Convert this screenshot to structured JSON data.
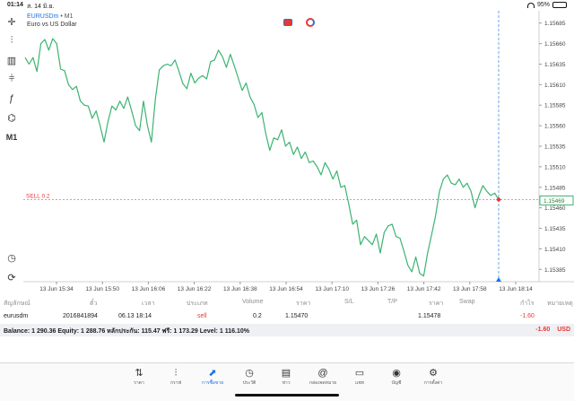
{
  "status": {
    "time": "01:14",
    "date": "ส. 14 มิ.ย.",
    "battery": "95%"
  },
  "chart": {
    "symbol": "EURUSDm",
    "timeframe": "M1",
    "description": "Euro vs US Dollar",
    "timeframe_button": "M1",
    "order_line_label": "SELL 0.2",
    "current_price": "1.15469",
    "price_ticks": [
      "1.15685",
      "1.15660",
      "1.15635",
      "1.15610",
      "1.15585",
      "1.15560",
      "1.15535",
      "1.15510",
      "1.15485",
      "1.15460",
      "1.15435",
      "1.15410",
      "1.15385"
    ],
    "time_ticks": [
      "13 Jun 15:34",
      "13 Jun 15:50",
      "13 Jun 16:06",
      "13 Jun 16:22",
      "13 Jun 16:38",
      "13 Jun 16:54",
      "13 Jun 17:10",
      "13 Jun 17:26",
      "13 Jun 17:42",
      "13 Jun 17:58",
      "13 Jun 18:14"
    ],
    "line_color": "#3cb371"
  },
  "chart_data": {
    "type": "line",
    "ylim": [
      1.1537,
      1.157
    ],
    "order_price": 1.1547,
    "current_price": 1.15469,
    "values": [
      1.15643,
      1.15635,
      1.15643,
      1.15626,
      1.1566,
      1.15665,
      1.15652,
      1.15666,
      1.1566,
      1.15629,
      1.15627,
      1.1561,
      1.15604,
      1.15608,
      1.1559,
      1.15585,
      1.15584,
      1.15569,
      1.15578,
      1.1556,
      1.1554,
      1.15565,
      1.15584,
      1.15579,
      1.1559,
      1.15581,
      1.15595,
      1.15578,
      1.1556,
      1.15554,
      1.1559,
      1.1556,
      1.1554,
      1.15592,
      1.15628,
      1.15633,
      1.15635,
      1.15633,
      1.1564,
      1.15626,
      1.15611,
      1.15605,
      1.15624,
      1.15612,
      1.15618,
      1.15621,
      1.15617,
      1.15638,
      1.1564,
      1.15652,
      1.15644,
      1.15631,
      1.15647,
      1.15633,
      1.15618,
      1.15603,
      1.15612,
      1.15595,
      1.15586,
      1.1557,
      1.15576,
      1.1555,
      1.1553,
      1.15545,
      1.15543,
      1.15555,
      1.15535,
      1.1554,
      1.15525,
      1.15534,
      1.1552,
      1.15528,
      1.15515,
      1.15517,
      1.1551,
      1.155,
      1.15515,
      1.15507,
      1.15495,
      1.15505,
      1.15485,
      1.15487,
      1.15465,
      1.1544,
      1.15445,
      1.15415,
      1.15425,
      1.1542,
      1.15415,
      1.15428,
      1.15405,
      1.1543,
      1.15438,
      1.1544,
      1.15425,
      1.15423,
      1.15407,
      1.1539,
      1.15382,
      1.154,
      1.1538,
      1.15377,
      1.15405,
      1.15427,
      1.1545,
      1.1548,
      1.15495,
      1.155,
      1.1549,
      1.15488,
      1.15495,
      1.15485,
      1.1549,
      1.1548,
      1.1546,
      1.15475,
      1.15487,
      1.1548,
      1.15475,
      1.15478,
      1.1547
    ]
  },
  "table": {
    "headers": [
      "สัญลักษณ์",
      "ตั๋ว",
      "เวลา",
      "ประเภท",
      "Volume",
      "ราคา",
      "S/L",
      "T/P",
      "ราคา",
      "Swap",
      "กำไร",
      "หมายเหตุ"
    ],
    "row": {
      "symbol": "eurusdm",
      "ticket": "2016841894",
      "time": "06.13 18:14",
      "type": "sell",
      "volume": "0.2",
      "open_price": "1.15470",
      "current_price": "1.15478",
      "profit": "-1.60"
    },
    "balance": "Balance: 1 290.36 Equity: 1 288.76 หลักประกัน: 115.47 ฟรี: 1 173.29 Level: 1 116.10%",
    "total_profit": "-1.60",
    "currency": "USD"
  },
  "tabs": [
    {
      "label": "ราคา",
      "icon": "arrows-updown-icon"
    },
    {
      "label": "กราฟ",
      "icon": "candles-icon"
    },
    {
      "label": "การซื้อขาย",
      "icon": "trade-chart-icon"
    },
    {
      "label": "ประวัติ",
      "icon": "history-icon"
    },
    {
      "label": "ข่าว",
      "icon": "news-icon"
    },
    {
      "label": "กล่องจดหมาย",
      "icon": "mail-icon"
    },
    {
      "label": "แชท",
      "icon": "chat-icon"
    },
    {
      "label": "บัญชี",
      "icon": "account-icon"
    },
    {
      "label": "การตั้งค่า",
      "icon": "gear-icon"
    }
  ]
}
